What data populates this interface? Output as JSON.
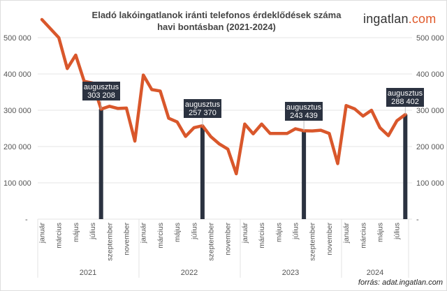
{
  "title_line1": "Eladó lakóingatlanok iránti telefonos érdeklődések száma",
  "title_line2": "havi bontásban (2021-2024)",
  "logo": {
    "text_main": "ingatlan",
    "text_accent": ".com",
    "accent_color": "#e05a2b"
  },
  "source": "forrás: adat.ingatlan.com",
  "chart_data": {
    "type": "line",
    "ylim": [
      0,
      550000
    ],
    "yticks": [
      "-",
      "100 000",
      "200 000",
      "300 000",
      "400 000",
      "500 000"
    ],
    "ytick_values": [
      0,
      100000,
      200000,
      300000,
      400000,
      500000
    ],
    "grid": true,
    "line_color": "#d9572b",
    "bar_color": "#2b3240",
    "years": [
      "2021",
      "2022",
      "2023",
      "2024"
    ],
    "month_labels": [
      "január",
      "",
      "március",
      "",
      "május",
      "",
      "július",
      "",
      "szeptember",
      "",
      "november",
      ""
    ],
    "values": [
      550000,
      525000,
      500000,
      415000,
      452000,
      380000,
      375000,
      303208,
      311000,
      305000,
      306000,
      215000,
      397000,
      357000,
      353000,
      278000,
      268000,
      228000,
      252000,
      257370,
      227000,
      207000,
      193000,
      125000,
      262000,
      235000,
      262000,
      236000,
      236000,
      236000,
      249000,
      243439,
      243000,
      245000,
      236000,
      153000,
      313000,
      304000,
      284000,
      300000,
      252000,
      230000,
      271000,
      288402
    ],
    "highlights": [
      {
        "index": 7,
        "label": "augusztus",
        "value_text": "303 208"
      },
      {
        "index": 19,
        "label": "augusztus",
        "value_text": "257 370"
      },
      {
        "index": 31,
        "label": "augusztus",
        "value_text": "243 439"
      },
      {
        "index": 43,
        "label": "augusztus",
        "value_text": "288 402"
      }
    ]
  }
}
